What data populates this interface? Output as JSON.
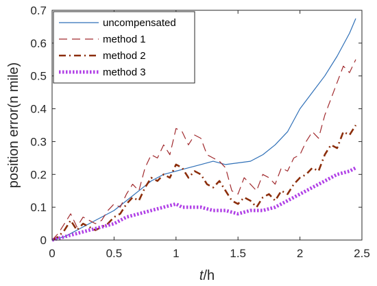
{
  "chart_data": {
    "type": "line",
    "title": "",
    "xlabel_italic": "t",
    "xlabel_unit": "/h",
    "ylabel": "position error(n mile)",
    "xlim": [
      0,
      2.5
    ],
    "ylim": [
      0,
      0.7
    ],
    "xticks": [
      0,
      0.5,
      1,
      1.5,
      2,
      2.5
    ],
    "xtick_labels": [
      "0",
      "0.5",
      "1",
      "1.5",
      "2",
      "2.5"
    ],
    "yticks": [
      0,
      0.1,
      0.2,
      0.3,
      0.4,
      0.5,
      0.6,
      0.7
    ],
    "ytick_labels": [
      "0",
      "0.1",
      "0.2",
      "0.3",
      "0.4",
      "0.5",
      "0.6",
      "0.7"
    ],
    "grid": false,
    "legend_position": "top-left",
    "series": [
      {
        "name": "uncompensated",
        "color": "#2e6fb7",
        "style": "solid",
        "x": [
          0,
          0.1,
          0.2,
          0.3,
          0.4,
          0.5,
          0.6,
          0.7,
          0.8,
          0.9,
          1.0,
          1.1,
          1.2,
          1.3,
          1.4,
          1.5,
          1.6,
          1.7,
          1.8,
          1.9,
          2.0,
          2.1,
          2.2,
          2.3,
          2.4,
          2.45
        ],
        "y": [
          0,
          0.01,
          0.03,
          0.05,
          0.07,
          0.09,
          0.12,
          0.15,
          0.18,
          0.2,
          0.21,
          0.22,
          0.23,
          0.24,
          0.23,
          0.235,
          0.24,
          0.26,
          0.29,
          0.33,
          0.4,
          0.45,
          0.5,
          0.56,
          0.63,
          0.675
        ]
      },
      {
        "name": "method 1",
        "color": "#a0292d",
        "style": "dashed",
        "x": [
          0,
          0.05,
          0.1,
          0.15,
          0.2,
          0.25,
          0.3,
          0.35,
          0.4,
          0.45,
          0.5,
          0.55,
          0.6,
          0.65,
          0.7,
          0.75,
          0.8,
          0.85,
          0.9,
          0.95,
          1.0,
          1.05,
          1.1,
          1.15,
          1.2,
          1.25,
          1.3,
          1.35,
          1.4,
          1.45,
          1.5,
          1.55,
          1.6,
          1.65,
          1.7,
          1.75,
          1.8,
          1.85,
          1.9,
          1.95,
          2.0,
          2.05,
          2.1,
          2.15,
          2.2,
          2.25,
          2.3,
          2.35,
          2.4,
          2.45
        ],
        "y": [
          0,
          0.02,
          0.05,
          0.08,
          0.04,
          0.07,
          0.06,
          0.05,
          0.06,
          0.09,
          0.11,
          0.1,
          0.14,
          0.17,
          0.15,
          0.22,
          0.26,
          0.25,
          0.29,
          0.26,
          0.34,
          0.33,
          0.29,
          0.32,
          0.31,
          0.26,
          0.25,
          0.24,
          0.22,
          0.15,
          0.14,
          0.19,
          0.17,
          0.15,
          0.2,
          0.19,
          0.17,
          0.22,
          0.21,
          0.25,
          0.26,
          0.3,
          0.33,
          0.31,
          0.38,
          0.43,
          0.48,
          0.53,
          0.51,
          0.55
        ]
      },
      {
        "name": "method 2",
        "color": "#8b2d0a",
        "style": "dashdot",
        "x": [
          0,
          0.05,
          0.1,
          0.15,
          0.2,
          0.25,
          0.3,
          0.35,
          0.4,
          0.45,
          0.5,
          0.55,
          0.6,
          0.65,
          0.7,
          0.75,
          0.8,
          0.85,
          0.9,
          0.95,
          1.0,
          1.05,
          1.1,
          1.15,
          1.2,
          1.25,
          1.3,
          1.35,
          1.4,
          1.45,
          1.5,
          1.55,
          1.6,
          1.65,
          1.7,
          1.75,
          1.8,
          1.85,
          1.9,
          1.95,
          2.0,
          2.05,
          2.1,
          2.15,
          2.2,
          2.25,
          2.3,
          2.35,
          2.4,
          2.45
        ],
        "y": [
          0,
          0.01,
          0.03,
          0.06,
          0.03,
          0.05,
          0.04,
          0.03,
          0.04,
          0.05,
          0.07,
          0.08,
          0.11,
          0.13,
          0.12,
          0.16,
          0.19,
          0.18,
          0.2,
          0.19,
          0.23,
          0.22,
          0.19,
          0.21,
          0.2,
          0.17,
          0.16,
          0.18,
          0.15,
          0.12,
          0.11,
          0.13,
          0.12,
          0.1,
          0.13,
          0.14,
          0.12,
          0.15,
          0.14,
          0.17,
          0.19,
          0.2,
          0.22,
          0.21,
          0.26,
          0.29,
          0.28,
          0.33,
          0.32,
          0.35
        ]
      },
      {
        "name": "method 3",
        "color": "#b040e6",
        "style": "dotted",
        "x": [
          0,
          0.1,
          0.2,
          0.3,
          0.4,
          0.5,
          0.6,
          0.7,
          0.8,
          0.9,
          1.0,
          1.05,
          1.1,
          1.2,
          1.3,
          1.4,
          1.5,
          1.6,
          1.7,
          1.8,
          1.9,
          2.0,
          2.1,
          2.2,
          2.3,
          2.4,
          2.45
        ],
        "y": [
          0,
          0.01,
          0.02,
          0.03,
          0.04,
          0.05,
          0.07,
          0.08,
          0.09,
          0.1,
          0.11,
          0.1,
          0.1,
          0.1,
          0.09,
          0.09,
          0.08,
          0.09,
          0.09,
          0.1,
          0.12,
          0.14,
          0.16,
          0.18,
          0.2,
          0.21,
          0.22
        ]
      }
    ]
  }
}
